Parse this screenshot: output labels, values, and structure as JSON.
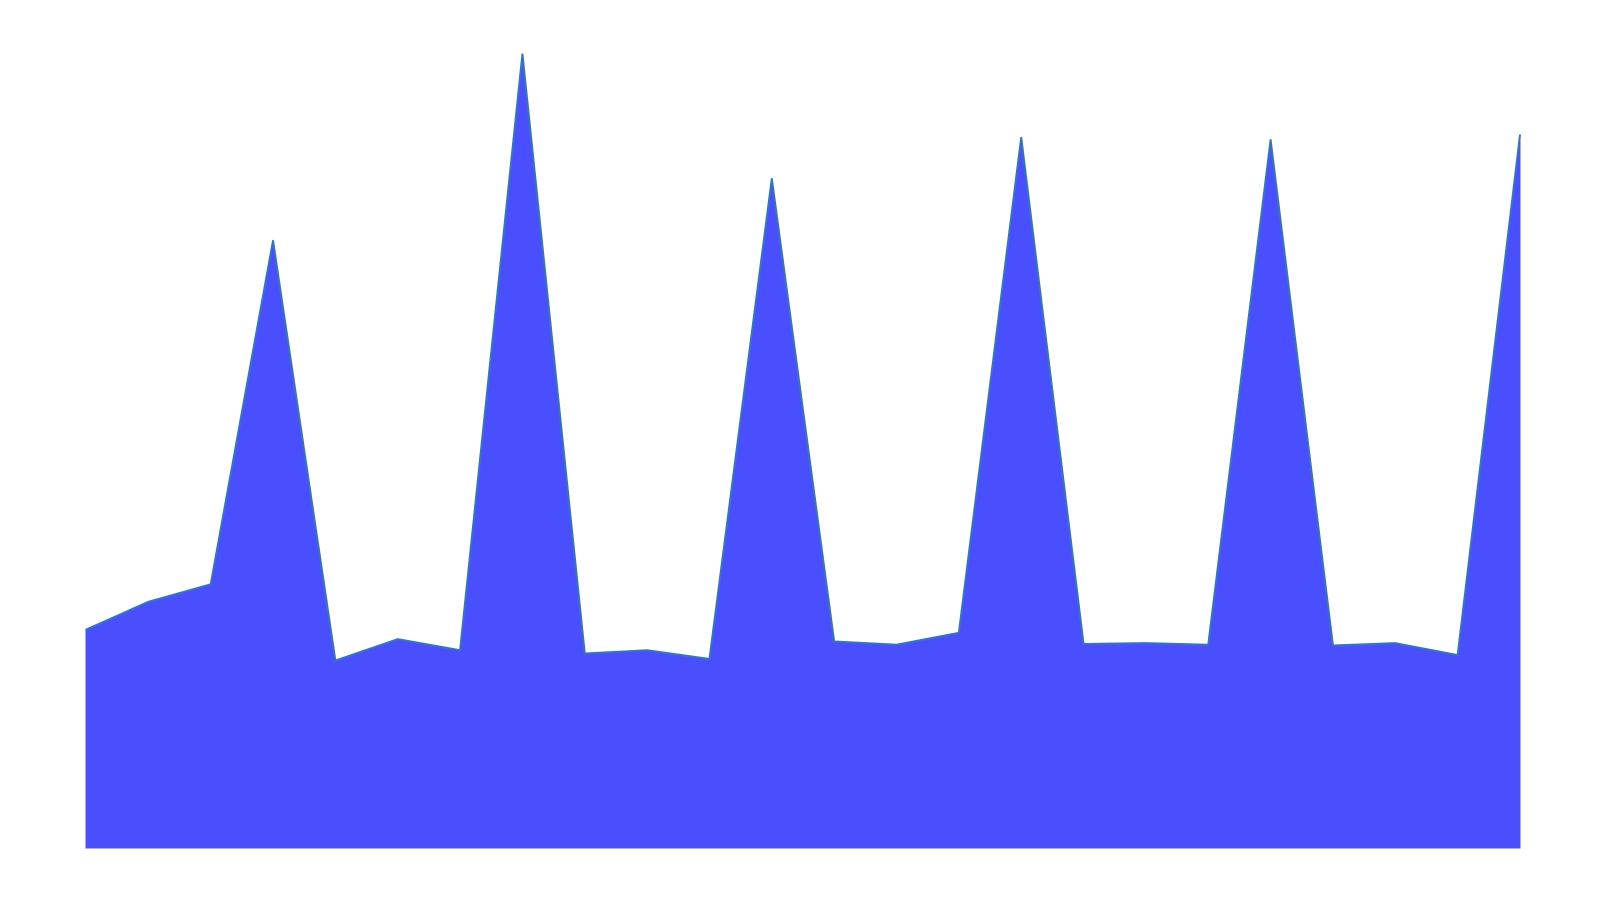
{
  "chart_data": {
    "type": "area",
    "title": "",
    "xlabel": "",
    "ylabel": "",
    "grid": false,
    "legend": "none",
    "x": [
      1,
      2,
      3,
      4,
      5,
      6,
      7,
      8,
      9,
      10,
      11,
      12,
      13,
      14,
      15,
      16,
      17,
      18,
      19,
      20,
      21,
      22,
      23,
      24
    ],
    "values": [
      27.5,
      31,
      33.2,
      76.5,
      23.6,
      26.3,
      24.9,
      100,
      24.5,
      24.9,
      23.8,
      84.3,
      26,
      25.6,
      27.1,
      89.5,
      25.7,
      25.8,
      25.6,
      89.2,
      25.5,
      25.8,
      24.3,
      89.8
    ],
    "ylim": [
      0,
      100
    ],
    "fill_color": "#4a4ffe",
    "line_color": "#3a74b8"
  }
}
